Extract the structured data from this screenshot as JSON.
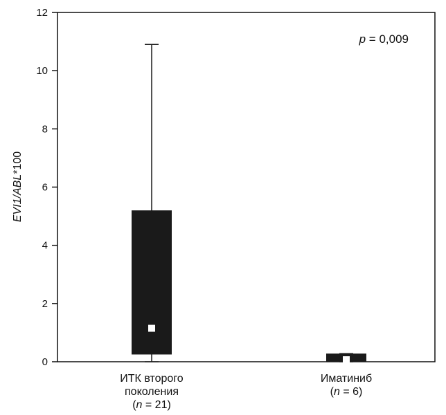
{
  "chart_data": {
    "type": "box",
    "annotation": {
      "var": "p",
      "rest": " = 0,009"
    },
    "ylabel": {
      "italic_part": "EVI1/ABL",
      "rest": "*100"
    },
    "ylim": [
      0,
      12
    ],
    "yticks": [
      0,
      2,
      4,
      6,
      8,
      10,
      12
    ],
    "categories": [
      {
        "line1": "ИТК второго",
        "line2": "поколения",
        "n_var": "n",
        "n_rest": " = 21",
        "min": 0,
        "q1": 0.25,
        "median": 1.15,
        "q3": 5.2,
        "max": 10.9
      },
      {
        "line1": "Иматиниб",
        "line2": "",
        "n_var": "n",
        "n_rest": " = 6",
        "min": 0,
        "q1": 0.0,
        "median": 0.07,
        "q3": 0.28,
        "max": 0.28
      }
    ],
    "colors": {
      "box": "#1a1a1a",
      "median": "#ffffff",
      "axis": "#111111"
    }
  }
}
